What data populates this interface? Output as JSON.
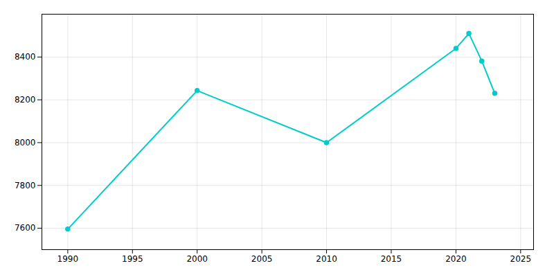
{
  "chart_data": {
    "type": "line",
    "x": [
      1990,
      2000,
      2010,
      2020,
      2021,
      2022,
      2023
    ],
    "values": [
      7596,
      8243,
      8000,
      8440,
      8510,
      8381,
      8230
    ],
    "color": "#00CCCC",
    "marker": "circle",
    "xlim": [
      1988,
      2026
    ],
    "ylim": [
      7500,
      8600
    ],
    "xticks": [
      1990,
      1995,
      2000,
      2005,
      2010,
      2015,
      2020,
      2025
    ],
    "yticks": [
      7600,
      7800,
      8000,
      8200,
      8400
    ],
    "grid": true
  }
}
